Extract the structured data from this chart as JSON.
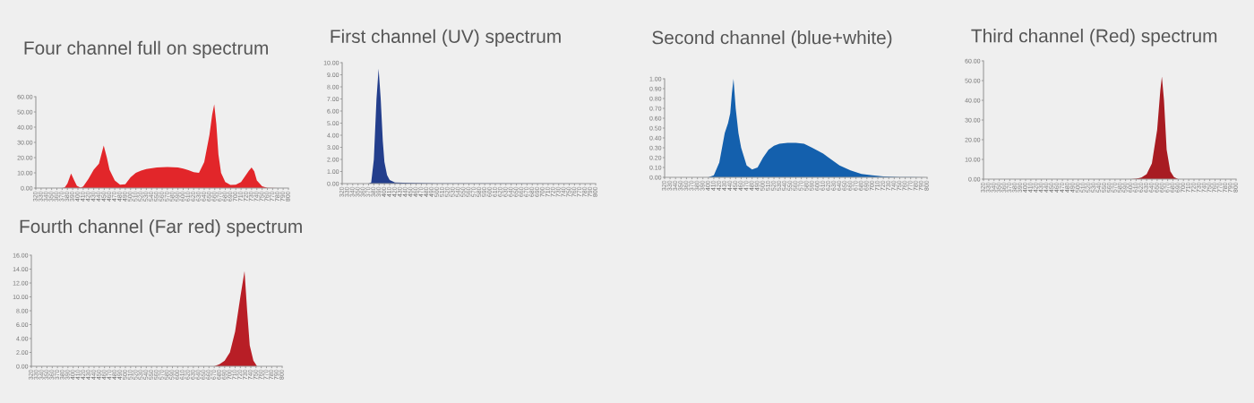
{
  "chart_data": [
    {
      "type": "area",
      "title": "Four channel full on spectrum",
      "xlim": [
        320,
        800
      ],
      "xticks": [
        320,
        330,
        340,
        350,
        360,
        370,
        380,
        390,
        400,
        410,
        420,
        430,
        440,
        450,
        460,
        470,
        480,
        490,
        500,
        510,
        520,
        530,
        540,
        550,
        560,
        570,
        580,
        590,
        600,
        610,
        620,
        630,
        640,
        650,
        660,
        670,
        680,
        690,
        700,
        710,
        720,
        730,
        740,
        750,
        760,
        770,
        780,
        790,
        800
      ],
      "ylim": [
        0,
        60
      ],
      "yticks": [
        {
          "value": 0,
          "label": "0.00"
        },
        {
          "value": 10,
          "label": "10.00"
        },
        {
          "value": 20,
          "label": "20.00"
        },
        {
          "value": 30,
          "label": "30.00"
        },
        {
          "value": 40,
          "label": "40.00"
        },
        {
          "value": 50,
          "label": "50.00"
        },
        {
          "value": 60,
          "label": "60.00"
        }
      ],
      "series": [
        {
          "color": "#e2262a",
          "x": [
            320,
            360,
            370,
            375,
            380,
            387,
            393,
            398,
            405,
            410,
            420,
            430,
            440,
            449,
            455,
            460,
            470,
            480,
            490,
            500,
            510,
            520,
            530,
            550,
            570,
            590,
            600,
            610,
            620,
            630,
            640,
            650,
            655,
            659,
            663,
            667,
            672,
            680,
            690,
            700,
            710,
            720,
            725,
            730,
            735,
            740,
            750,
            760,
            780,
            800
          ],
          "values": [
            0,
            0,
            0,
            0.5,
            3,
            9.5,
            5,
            1.5,
            0.3,
            1,
            6,
            12,
            16,
            28,
            20,
            12,
            5,
            2.2,
            2.5,
            7,
            10,
            11.5,
            12.5,
            13.5,
            13.8,
            13.5,
            12.8,
            11.8,
            10.5,
            10,
            17,
            35,
            48,
            55,
            42,
            22,
            10,
            4,
            2,
            2.2,
            4,
            9,
            11.5,
            13.5,
            11,
            5,
            1.2,
            0.2,
            0,
            0
          ]
        }
      ]
    },
    {
      "type": "area",
      "title": "First channel (UV) spectrum",
      "xlim": [
        320,
        800
      ],
      "xticks": [
        320,
        330,
        340,
        350,
        360,
        370,
        380,
        390,
        400,
        410,
        420,
        430,
        440,
        450,
        460,
        470,
        480,
        490,
        500,
        510,
        520,
        530,
        540,
        550,
        560,
        570,
        580,
        590,
        600,
        610,
        620,
        630,
        640,
        650,
        660,
        670,
        680,
        690,
        700,
        710,
        720,
        730,
        740,
        750,
        760,
        770,
        780,
        790,
        800
      ],
      "ylim": [
        0,
        10
      ],
      "yticks": [
        {
          "value": 0,
          "label": "0.00"
        },
        {
          "value": 1,
          "label": "1.00"
        },
        {
          "value": 2,
          "label": "2.00"
        },
        {
          "value": 3,
          "label": "3.00"
        },
        {
          "value": 4,
          "label": "4.00"
        },
        {
          "value": 5,
          "label": "5.00"
        },
        {
          "value": 6,
          "label": "6.00"
        },
        {
          "value": 7,
          "label": "7.00"
        },
        {
          "value": 8,
          "label": "8.00"
        },
        {
          "value": 9,
          "label": "9.00"
        },
        {
          "value": 10,
          "label": "10.00"
        }
      ],
      "series": [
        {
          "color": "#233e8c",
          "x": [
            320,
            370,
            375,
            380,
            385,
            389,
            393,
            397,
            400,
            405,
            410,
            420,
            450,
            500,
            800
          ],
          "values": [
            0,
            0,
            0.1,
            2,
            7,
            9.5,
            7,
            3.5,
            1.8,
            0.7,
            0.3,
            0.1,
            0.05,
            0.02,
            0
          ]
        }
      ]
    },
    {
      "type": "area",
      "title": "Second channel (blue+white)",
      "xlim": [
        320,
        800
      ],
      "xticks": [
        320,
        330,
        340,
        350,
        360,
        370,
        380,
        390,
        400,
        410,
        420,
        430,
        440,
        450,
        460,
        470,
        480,
        490,
        500,
        510,
        520,
        530,
        540,
        550,
        560,
        570,
        580,
        590,
        600,
        610,
        620,
        630,
        640,
        650,
        660,
        670,
        680,
        690,
        700,
        710,
        720,
        730,
        740,
        750,
        760,
        770,
        780,
        790,
        800
      ],
      "ylim": [
        0,
        1
      ],
      "yticks": [
        {
          "value": 0,
          "label": "0.00"
        },
        {
          "value": 0.1,
          "label": "0.10"
        },
        {
          "value": 0.2,
          "label": "0.20"
        },
        {
          "value": 0.3,
          "label": "0.30"
        },
        {
          "value": 0.4,
          "label": "0.40"
        },
        {
          "value": 0.5,
          "label": "0.50"
        },
        {
          "value": 0.6,
          "label": "0.60"
        },
        {
          "value": 0.7,
          "label": "0.70"
        },
        {
          "value": 0.8,
          "label": "0.80"
        },
        {
          "value": 0.9,
          "label": "0.90"
        },
        {
          "value": 1,
          "label": "1.00"
        }
      ],
      "series": [
        {
          "color": "#1460ad",
          "x": [
            320,
            400,
            410,
            420,
            430,
            436,
            440,
            443,
            446,
            450,
            455,
            460,
            470,
            480,
            490,
            500,
            510,
            520,
            530,
            545,
            560,
            575,
            590,
            600,
            610,
            620,
            640,
            660,
            680,
            700,
            720,
            750,
            800
          ],
          "values": [
            0,
            0,
            0.02,
            0.15,
            0.45,
            0.55,
            0.65,
            0.85,
            1.0,
            0.7,
            0.45,
            0.3,
            0.12,
            0.08,
            0.1,
            0.2,
            0.28,
            0.32,
            0.34,
            0.35,
            0.35,
            0.34,
            0.3,
            0.27,
            0.24,
            0.2,
            0.12,
            0.07,
            0.035,
            0.02,
            0.01,
            0.003,
            0
          ]
        }
      ]
    },
    {
      "type": "area",
      "title": "Third channel (Red) spectrum",
      "xlim": [
        320,
        800
      ],
      "xticks": [
        320,
        330,
        340,
        350,
        360,
        370,
        380,
        390,
        400,
        410,
        420,
        430,
        440,
        450,
        460,
        470,
        480,
        490,
        500,
        510,
        520,
        530,
        540,
        550,
        560,
        570,
        580,
        590,
        600,
        610,
        620,
        630,
        640,
        650,
        660,
        670,
        680,
        690,
        700,
        710,
        720,
        730,
        740,
        750,
        760,
        770,
        780,
        790,
        800
      ],
      "ylim": [
        0,
        60
      ],
      "yticks": [
        {
          "value": 0,
          "label": "0.00"
        },
        {
          "value": 10,
          "label": "10.00"
        },
        {
          "value": 20,
          "label": "20.00"
        },
        {
          "value": 30,
          "label": "30.00"
        },
        {
          "value": 40,
          "label": "40.00"
        },
        {
          "value": 50,
          "label": "50.00"
        },
        {
          "value": 60,
          "label": "60.00"
        }
      ],
      "series": [
        {
          "color": "#a81c22",
          "x": [
            320,
            600,
            610,
            620,
            630,
            640,
            650,
            656,
            659,
            663,
            668,
            675,
            682,
            690,
            800
          ],
          "values": [
            0,
            0,
            0.2,
            0.8,
            2.5,
            8,
            25,
            45,
            52,
            40,
            15,
            4,
            1,
            0,
            0
          ]
        }
      ]
    },
    {
      "type": "area",
      "title": "Fourth channel (Far red) spectrum",
      "xlim": [
        320,
        800
      ],
      "xticks": [
        320,
        330,
        340,
        350,
        360,
        370,
        380,
        390,
        400,
        410,
        420,
        430,
        440,
        450,
        460,
        470,
        480,
        490,
        500,
        510,
        520,
        530,
        540,
        550,
        560,
        570,
        580,
        590,
        600,
        610,
        620,
        630,
        640,
        650,
        660,
        670,
        680,
        690,
        700,
        710,
        720,
        730,
        740,
        750,
        760,
        770,
        780,
        790,
        800
      ],
      "ylim": [
        0,
        16
      ],
      "yticks": [
        {
          "value": 0,
          "label": "0.00"
        },
        {
          "value": 2,
          "label": "2.00"
        },
        {
          "value": 4,
          "label": "4.00"
        },
        {
          "value": 6,
          "label": "6.00"
        },
        {
          "value": 8,
          "label": "8.00"
        },
        {
          "value": 10,
          "label": "10.00"
        },
        {
          "value": 12,
          "label": "12.00"
        },
        {
          "value": 14,
          "label": "14.00"
        },
        {
          "value": 16,
          "label": "16.00"
        }
      ],
      "series": [
        {
          "color": "#b81e26",
          "x": [
            320,
            670,
            680,
            690,
            700,
            710,
            720,
            728,
            733,
            738,
            745,
            752,
            800
          ],
          "values": [
            0,
            0,
            0.3,
            0.8,
            2,
            5,
            10,
            13.7,
            8,
            3,
            0.8,
            0,
            0
          ]
        }
      ]
    }
  ]
}
